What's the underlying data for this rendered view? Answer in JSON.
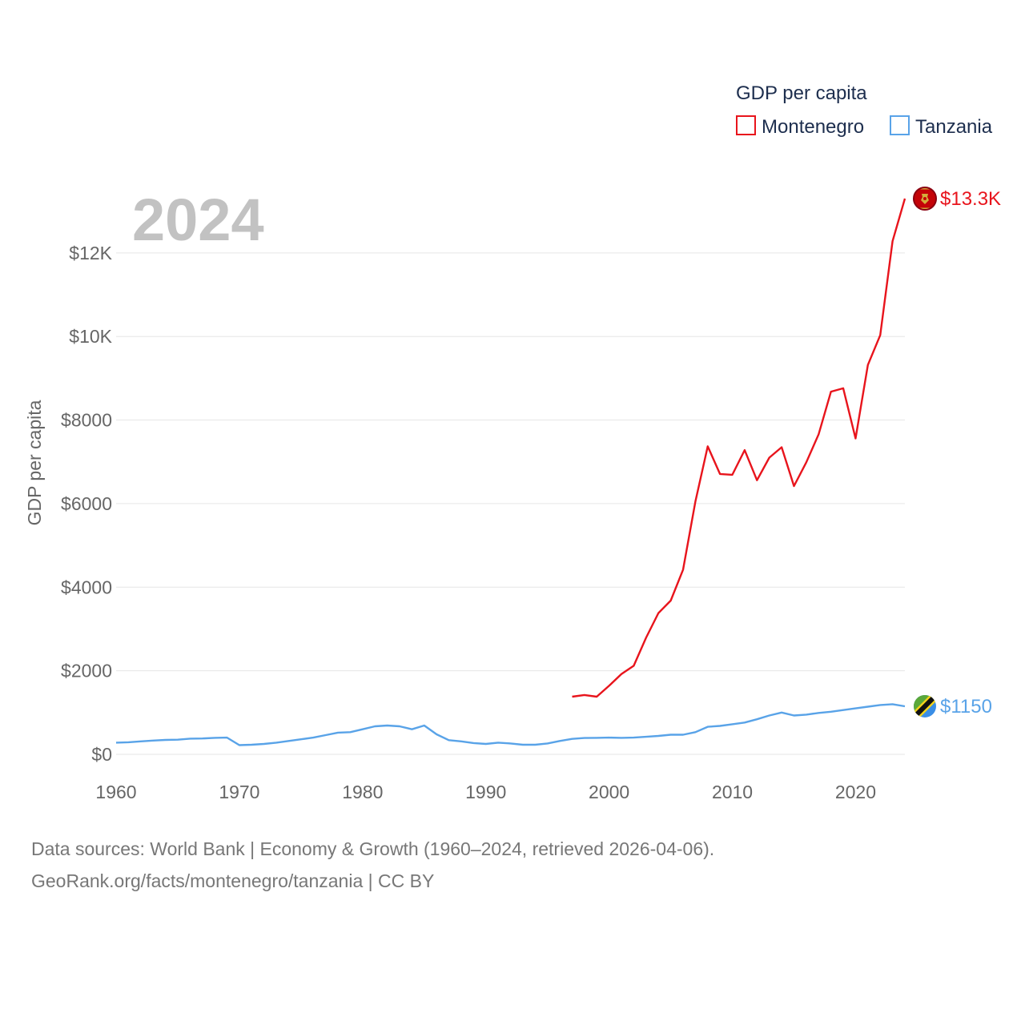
{
  "chart_data": {
    "type": "line",
    "year_label": "2024",
    "ylabel": "GDP per capita",
    "xlabel": "",
    "xlim": [
      1960,
      2024
    ],
    "ylim": [
      0,
      13300
    ],
    "x_ticks": [
      1960,
      1970,
      1980,
      1990,
      2000,
      2010,
      2020
    ],
    "x_tick_labels": [
      "1960",
      "1970",
      "1980",
      "1990",
      "2000",
      "2010",
      "2020"
    ],
    "y_ticks": [
      0,
      2000,
      4000,
      6000,
      8000,
      10000,
      12000
    ],
    "y_tick_labels": [
      "$0",
      "$2000",
      "$4000",
      "$6000",
      "$8000",
      "$10K",
      "$12K"
    ],
    "legend": {
      "title": "GDP per capita",
      "position": "top-right"
    },
    "series": [
      {
        "name": "Montenegro",
        "color": "#e8141c",
        "end_label": "$13.3K",
        "flag": "montenegro-flag",
        "x": [
          1997,
          1998,
          1999,
          2000,
          2001,
          2002,
          2003,
          2004,
          2005,
          2006,
          2007,
          2008,
          2009,
          2010,
          2011,
          2012,
          2013,
          2014,
          2015,
          2016,
          2017,
          2018,
          2019,
          2020,
          2021,
          2022,
          2023,
          2024
        ],
        "values": [
          1380,
          1420,
          1380,
          1640,
          1920,
          2120,
          2790,
          3380,
          3680,
          4420,
          6050,
          7370,
          6710,
          6690,
          7280,
          6560,
          7100,
          7350,
          6420,
          6990,
          7660,
          8680,
          8760,
          7560,
          9320,
          10030,
          12280,
          13300
        ]
      },
      {
        "name": "Tanzania",
        "color": "#59a3e8",
        "end_label": "$1150",
        "flag": "tanzania-flag",
        "x": [
          1960,
          1961,
          1962,
          1963,
          1964,
          1965,
          1966,
          1967,
          1968,
          1969,
          1970,
          1971,
          1972,
          1973,
          1974,
          1975,
          1976,
          1977,
          1978,
          1979,
          1980,
          1981,
          1982,
          1983,
          1984,
          1985,
          1986,
          1987,
          1988,
          1989,
          1990,
          1991,
          1992,
          1993,
          1994,
          1995,
          1996,
          1997,
          1998,
          1999,
          2000,
          2001,
          2002,
          2003,
          2004,
          2005,
          2006,
          2007,
          2008,
          2009,
          2010,
          2011,
          2012,
          2013,
          2014,
          2015,
          2016,
          2017,
          2018,
          2019,
          2020,
          2021,
          2022,
          2023,
          2024
        ],
        "values": [
          280,
          290,
          310,
          330,
          345,
          350,
          375,
          380,
          395,
          400,
          220,
          230,
          250,
          280,
          320,
          360,
          400,
          460,
          520,
          530,
          600,
          670,
          690,
          670,
          600,
          690,
          480,
          340,
          310,
          270,
          250,
          280,
          260,
          230,
          230,
          260,
          320,
          370,
          390,
          395,
          400,
          395,
          400,
          420,
          440,
          470,
          470,
          530,
          660,
          680,
          720,
          760,
          840,
          930,
          1000,
          930,
          950,
          990,
          1020,
          1060,
          1100,
          1140,
          1180,
          1200,
          1150
        ]
      }
    ]
  },
  "footer": {
    "line1": "Data sources: World Bank | Economy & Growth (1960–2024, retrieved 2026-04-06).",
    "line2": "GeoRank.org/facts/montenegro/tanzania | CC BY"
  }
}
